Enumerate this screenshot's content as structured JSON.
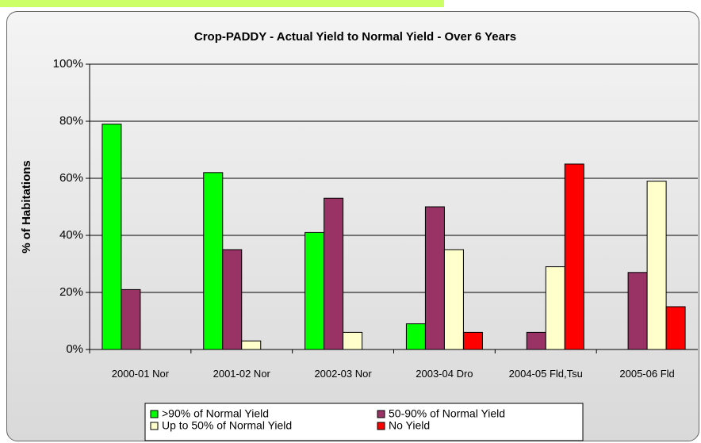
{
  "chart_data": {
    "type": "bar",
    "title": "Crop-PADDY  - Actual Yield to Normal Yield - Over 6 Years",
    "y_label": "% of Habitations",
    "categories": [
      "2000-01 Nor",
      "2001-02 Nor",
      "2002-03 Nor",
      "2003-04 Dro",
      "2004-05 Fld,Tsu",
      "2005-06 Fld"
    ],
    "series": [
      {
        "name": ">90% of Normal Yield",
        "color": "#00ff00",
        "values": [
          79,
          62,
          41,
          9,
          0,
          0
        ]
      },
      {
        "name": "50-90% of Normal Yield",
        "color": "#993366",
        "values": [
          21,
          35,
          53,
          50,
          6,
          27
        ]
      },
      {
        "name": "Up to 50% of Normal Yield",
        "color": "#ffffcc",
        "values": [
          0,
          3,
          6,
          35,
          29,
          59
        ]
      },
      {
        "name": "No Yield",
        "color": "#ff0000",
        "values": [
          0,
          0,
          0,
          6,
          65,
          15
        ]
      }
    ],
    "ylim": [
      0,
      100
    ],
    "yticks": [
      {
        "value": 0,
        "label": "0%"
      },
      {
        "value": 20,
        "label": "20%"
      },
      {
        "value": 40,
        "label": "40%"
      },
      {
        "value": 60,
        "label": "60%"
      },
      {
        "value": 80,
        "label": "80%"
      },
      {
        "value": 100,
        "label": "100%"
      }
    ],
    "grid": true
  }
}
